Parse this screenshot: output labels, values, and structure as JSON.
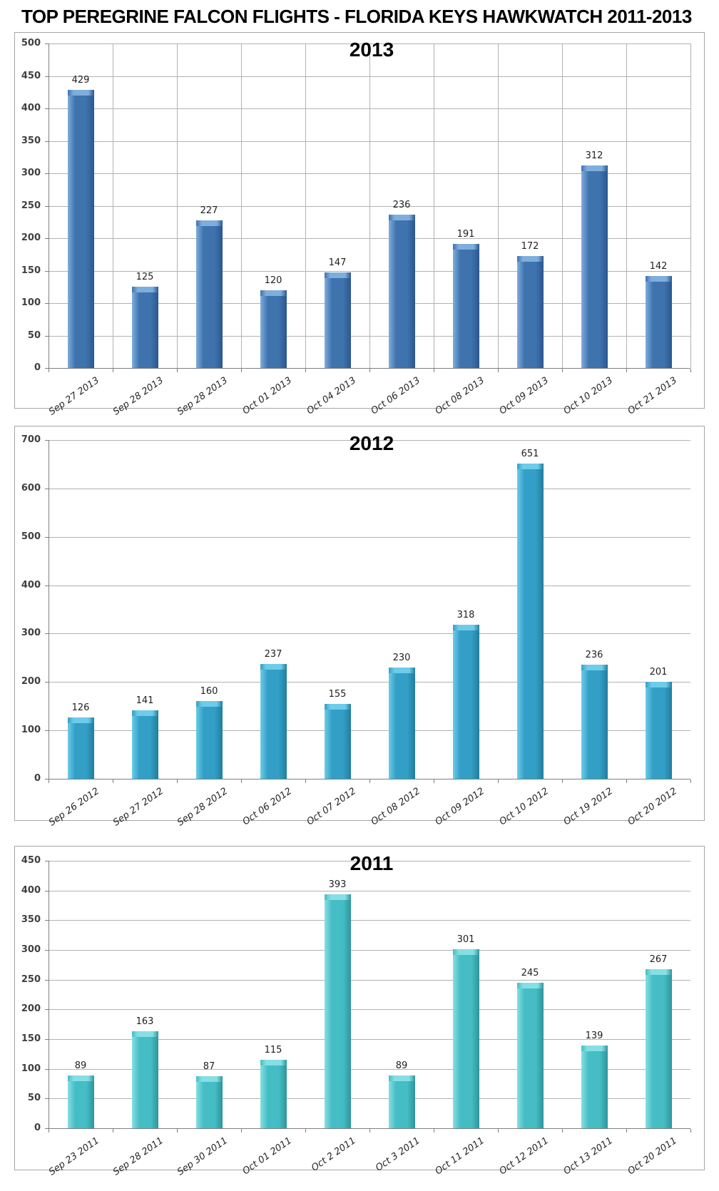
{
  "page_title": "TOP PEREGRINE FALCON FLIGHTS - FLORIDA KEYS HAWKWATCH 2011-2013",
  "chart_data": [
    {
      "type": "bar",
      "title": "2013",
      "categories": [
        "Sep 27 2013",
        "Sep 28 2013",
        "Sep 28 2013",
        "Oct 01 2013",
        "Oct 04 2013",
        "Oct 06 2013",
        "Oct 08 2013",
        "Oct 09 2013",
        "Oct 10 2013",
        "Oct 21 2013"
      ],
      "values": [
        429,
        125,
        227,
        120,
        147,
        236,
        191,
        172,
        312,
        142
      ],
      "xlabel": "",
      "ylabel": "",
      "ylim": [
        0,
        500
      ],
      "ytick_step": 50,
      "legend": "none",
      "grid": {
        "horizontal": true,
        "vertical": true
      },
      "bar_color": "#3E73AE",
      "bar_color_light": "#7FAEDD",
      "bar_color_dark": "#2B578F"
    },
    {
      "type": "bar",
      "title": "2012",
      "categories": [
        "Sep 26 2012",
        "Sep 27 2012",
        "Sep 28 2012",
        "Oct 06 2012",
        "Oct 07 2012",
        "Oct 08 2012",
        "Oct 09 2012",
        "Oct 10 2012",
        "Oct 19 2012",
        "Oct 20 2012"
      ],
      "values": [
        126,
        141,
        160,
        237,
        155,
        230,
        318,
        651,
        236,
        201
      ],
      "xlabel": "",
      "ylabel": "",
      "ylim": [
        0,
        700
      ],
      "ytick_step": 100,
      "legend": "none",
      "grid": {
        "horizontal": true,
        "vertical": false
      },
      "bar_color": "#339FC6",
      "bar_color_light": "#6CCCE9",
      "bar_color_dark": "#217E9E"
    },
    {
      "type": "bar",
      "title": "2011",
      "categories": [
        "Sep 23 2011",
        "Sep 28 2011",
        "Sep 30 2011",
        "Oct 01 2011",
        "Oct 2 2011",
        "Oct 3 2011",
        "Oct 11 2011",
        "Oct 12 2011",
        "Oct 13 2011",
        "Oct 20 2011"
      ],
      "values": [
        89,
        163,
        87,
        115,
        393,
        89,
        301,
        245,
        139,
        267
      ],
      "xlabel": "",
      "ylabel": "",
      "ylim": [
        0,
        450
      ],
      "ytick_step": 50,
      "legend": "none",
      "grid": {
        "horizontal": true,
        "vertical": false
      },
      "bar_color": "#45BDC4",
      "bar_color_light": "#85DFE4",
      "bar_color_dark": "#2F959C"
    }
  ]
}
